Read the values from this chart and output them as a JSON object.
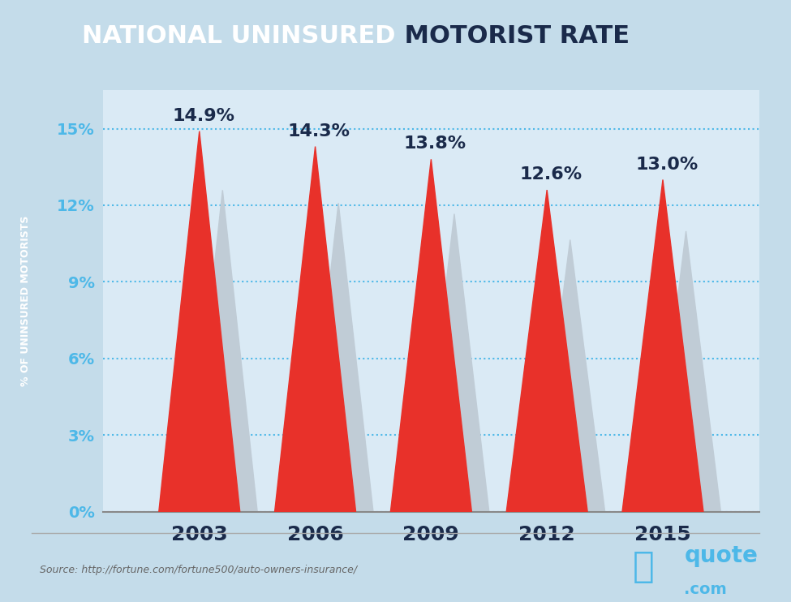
{
  "title_white": "NATIONAL UNINSURED",
  "title_dark": " MOTORIST RATE",
  "years": [
    2003,
    2006,
    2009,
    2012,
    2015
  ],
  "values": [
    14.9,
    14.3,
    13.8,
    12.6,
    13.0
  ],
  "labels": [
    "14.9%",
    "14.3%",
    "13.8%",
    "12.6%",
    "13.0%"
  ],
  "yticks": [
    0,
    3,
    6,
    9,
    12,
    15
  ],
  "ytick_labels": [
    "0%",
    "3%",
    "6%",
    "9%",
    "12%",
    "15%"
  ],
  "ylabel": "% OF UNINSURED MOTORISTS",
  "source": "Source: http://fortune.com/fortune500/auto-owners-insurance/",
  "bg_color": "#c4dcea",
  "plot_bg_color": "#daeaf5",
  "header_color": "#3ab5e6",
  "red_color": "#e8312a",
  "gray_color": "#c0ccd6",
  "dark_blue": "#1a2a4a",
  "axis_blue": "#4db8e8",
  "ylabel_bg": "#1a2a4a",
  "ylabel_text": "#ffffff",
  "tab_color": "#1565a0",
  "title_fontsize": 22,
  "label_fontsize": 16,
  "tick_fontsize": 14,
  "xlabel_fontsize": 18,
  "ylim": [
    0,
    16.5
  ],
  "xlim": [
    2000.5,
    2017.5
  ]
}
